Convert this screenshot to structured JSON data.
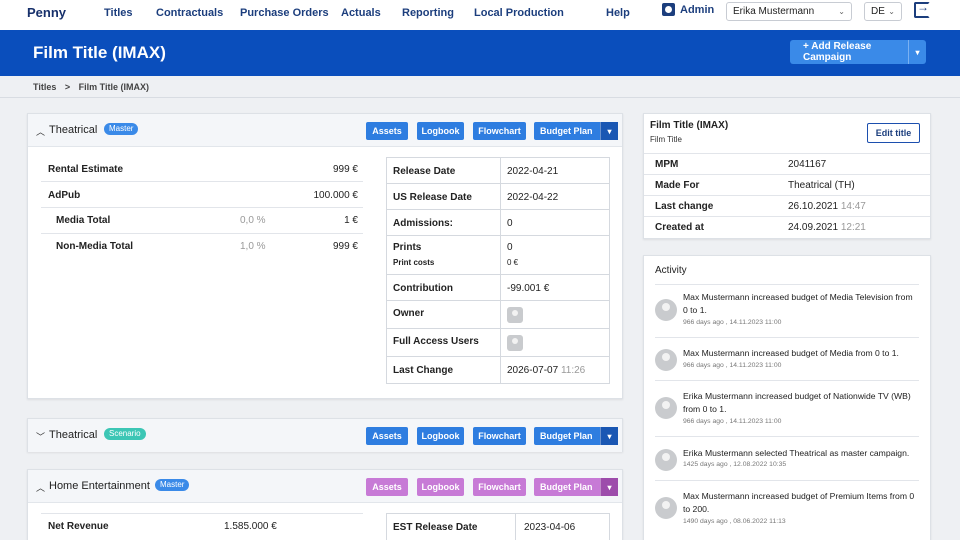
{
  "nav": {
    "logo": "Penny",
    "links": [
      "Titles",
      "Contractuals",
      "Purchase Orders",
      "Actuals",
      "Reporting",
      "Local Production",
      "Help"
    ],
    "admin": "Admin",
    "user": "Erika Mustermann",
    "lang": "DE"
  },
  "header": {
    "title": "Film Title (IMAX)",
    "add_button": "+ Add Release Campaign"
  },
  "breadcrumb": [
    "Titles",
    ">",
    "Film Title (IMAX)"
  ],
  "buttons": {
    "assets": "Assets",
    "logbook": "Logbook",
    "flowchart": "Flowchart",
    "budget_plan": "Budget Plan"
  },
  "campaigns": [
    {
      "name": "Theatrical",
      "badge": "Master",
      "badge_color": "#3a8ae8",
      "expanded": true,
      "summary": [
        {
          "label": "Rental Estimate",
          "pct": "",
          "value": "999 €"
        },
        {
          "label": "AdPub",
          "pct": "",
          "value": "100.000 €"
        },
        {
          "label": "Media Total",
          "pct": "0,0 %",
          "value": "1 €"
        },
        {
          "label": "Non-Media Total",
          "pct": "1,0 %",
          "value": "999 €"
        }
      ],
      "details": {
        "release_date": {
          "label": "Release Date",
          "value": "2022-04-21"
        },
        "us_release_date": {
          "label": "US Release Date",
          "value": "2022-04-22"
        },
        "admissions": {
          "label": "Admissions:",
          "value": "0"
        },
        "prints": {
          "label": "Prints",
          "value": "0",
          "sub_label": "Print costs",
          "sub_value": "0 €"
        },
        "contribution": {
          "label": "Contribution",
          "value": "-99.001 €"
        },
        "owner": {
          "label": "Owner"
        },
        "full_access": {
          "label": "Full Access Users"
        },
        "last_change": {
          "label": "Last Change",
          "date": "2026-07-07",
          "time": "11:26"
        }
      }
    },
    {
      "name": "Theatrical",
      "badge": "Scenario",
      "badge_color": "#3cc6b5",
      "expanded": false
    },
    {
      "name": "Home Entertainment",
      "badge": "Master",
      "badge_color": "#3a8ae8",
      "expanded": true,
      "summary": [
        {
          "label": "Net Revenue",
          "value": "1.585.000 €"
        }
      ],
      "details": {
        "est_release_date": {
          "label": "EST Release Date",
          "value": "2023-04-06"
        }
      }
    }
  ],
  "title_info": {
    "title": "Film Title (IMAX)",
    "subtitle": "Film Title",
    "edit_button": "Edit title",
    "rows": [
      {
        "label": "MPM",
        "value": "2041167",
        "muted": ""
      },
      {
        "label": "Made For",
        "value": "Theatrical (TH)",
        "muted": ""
      },
      {
        "label": "Last change",
        "value": "26.10.2021",
        "muted": "14:47"
      },
      {
        "label": "Created at",
        "value": "24.09.2021",
        "muted": "12:21"
      }
    ]
  },
  "activity": {
    "title": "Activity",
    "items": [
      {
        "text": "Max Mustermann increased budget of Media Television from 0 to 1.",
        "meta": "966 days ago , 14.11.2023 11:00"
      },
      {
        "text": "Max Mustermann increased budget of Media from 0 to 1.",
        "meta": "966 days ago , 14.11.2023 11:00"
      },
      {
        "text": "Erika Mustermann increased budget of Nationwide TV (WB) from 0 to 1.",
        "meta": "966 days ago , 14.11.2023 11:00"
      },
      {
        "text": "Erika Mustermann selected Theatrical as master campaign.",
        "meta": "1425 days ago , 12.08.2022 10:35"
      },
      {
        "text": "Max Mustermann increased budget of Premium Items from 0 to 200.",
        "meta": "1490 days ago , 08.06.2022 11:13"
      }
    ]
  },
  "colors": {
    "brand_band": "#0a4ebc",
    "button_blue": "#2e7de0",
    "button_purple": "#c77ad6"
  }
}
